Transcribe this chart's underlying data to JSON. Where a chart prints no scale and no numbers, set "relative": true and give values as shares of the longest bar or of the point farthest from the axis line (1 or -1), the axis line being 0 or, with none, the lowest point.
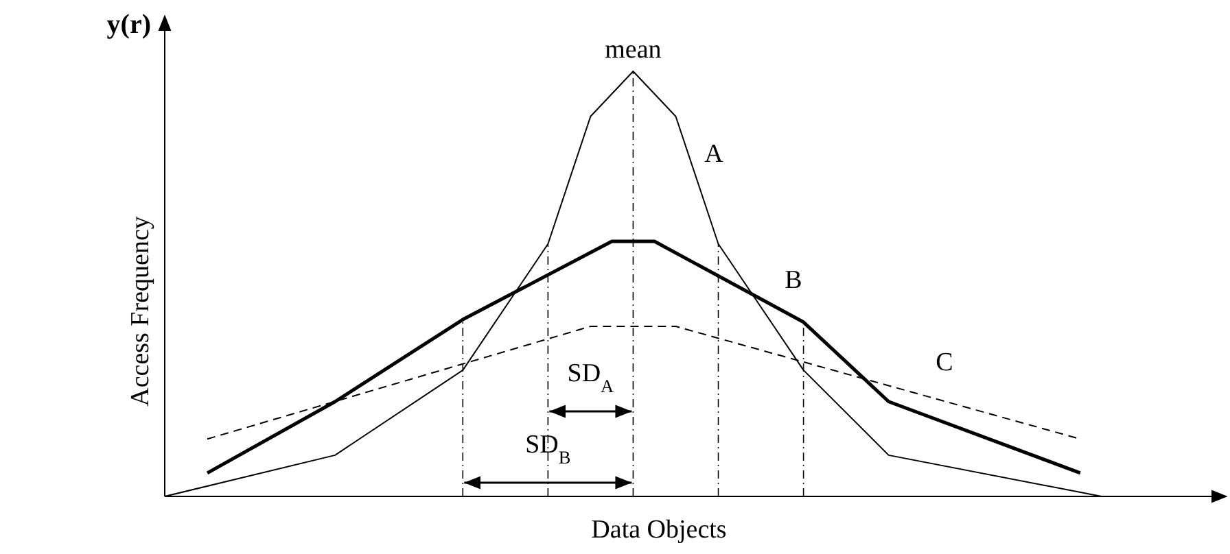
{
  "chart_data": {
    "type": "line",
    "relative": true,
    "xlabel": "Data Objects",
    "ylabel": "Access Frequency",
    "categories": [
      null,
      null,
      null,
      null,
      null,
      null,
      null,
      null,
      null,
      null,
      null,
      null,
      null,
      null,
      null,
      null,
      null,
      null,
      null,
      null,
      null,
      null,
      null,
      null,
      null,
      null,
      null,
      null,
      null,
      null,
      null,
      null,
      null,
      null,
      null,
      null,
      null,
      null,
      null,
      null,
      null,
      null,
      null,
      null,
      null,
      null,
      null,
      null,
      null,
      null
    ],
    "series": [
      {
        "name": "A",
        "color": "#000000",
        "line_style": "solid",
        "values": [
          0,
          null,
          null,
          null,
          null,
          null,
          null,
          null,
          0.097,
          null,
          null,
          null,
          null,
          null,
          0.297,
          null,
          null,
          null,
          0.594,
          null,
          0.894,
          null,
          1,
          null,
          0.894,
          null,
          0.594,
          null,
          null,
          null,
          0.297,
          null,
          null,
          null,
          0.097,
          null,
          null,
          null,
          null,
          null,
          null,
          null,
          null,
          null,
          0,
          null,
          null,
          null,
          null,
          null
        ]
      },
      {
        "name": "B",
        "color": "#000000",
        "line_style": "solid",
        "values": [
          null,
          null,
          0.055,
          null,
          null,
          null,
          null,
          null,
          0.223,
          null,
          null,
          null,
          null,
          null,
          0.416,
          null,
          null,
          null,
          null,
          null,
          null,
          0.6,
          null,
          0.6,
          null,
          null,
          null,
          null,
          null,
          null,
          0.41,
          null,
          null,
          null,
          0.223,
          null,
          null,
          null,
          null,
          null,
          null,
          null,
          null,
          0.055,
          null,
          null,
          null,
          null,
          null,
          null
        ]
      },
      {
        "name": "C",
        "color": "#000000",
        "line_style": "dashed",
        "values": [
          null,
          null,
          0.135,
          null,
          null,
          null,
          null,
          null,
          null,
          null,
          null,
          null,
          null,
          null,
          null,
          null,
          null,
          null,
          null,
          null,
          0.4,
          null,
          null,
          null,
          0.4,
          null,
          null,
          null,
          null,
          null,
          null,
          null,
          null,
          null,
          null,
          null,
          null,
          null,
          null,
          null,
          null,
          null,
          null,
          0.135,
          null,
          null,
          null,
          null,
          null,
          null
        ]
      }
    ],
    "annotations": [
      "y(r)",
      "mean",
      "SD$_{A}$",
      "SD$_{B}$"
    ]
  }
}
